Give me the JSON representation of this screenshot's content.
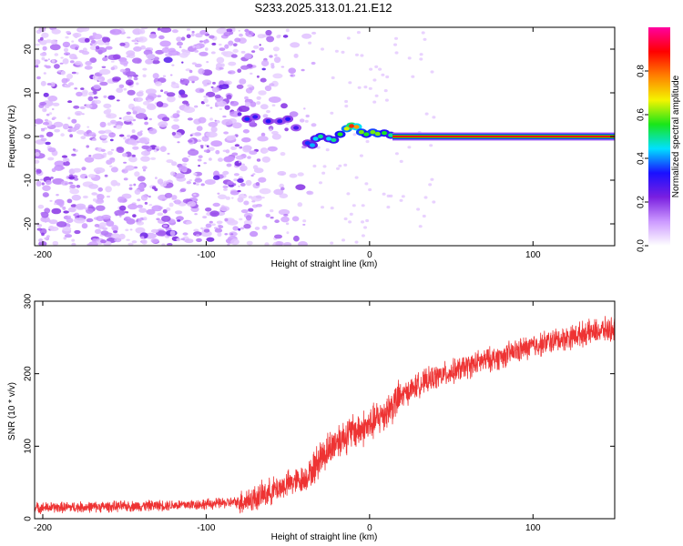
{
  "title": "S233.2025.313.01.21.E12",
  "colors": {
    "series": "#ee3333",
    "axis": "#000000",
    "colormap": [
      "#ffffff",
      "#cc99ff",
      "#7a1fe0",
      "#1a10ff",
      "#00e0ff",
      "#19e619",
      "#f4f400",
      "#ff8000",
      "#ff0000",
      "#ff00a0"
    ]
  },
  "chart_data": [
    {
      "type": "heatmap",
      "title": "S233.2025.313.01.21.E12",
      "xlabel": "Height of straight line (km)",
      "ylabel": "Frequency (Hz)",
      "xlim": [
        -205,
        150
      ],
      "ylim": [
        -25,
        25
      ],
      "xticks": [
        -200,
        -100,
        0,
        100
      ],
      "yticks": [
        -20,
        -10,
        0,
        10,
        20
      ],
      "colorbar": {
        "label": "Normalized spectral amplitude",
        "range": [
          0,
          1
        ],
        "ticks": [
          0.0,
          0.2,
          0.4,
          0.6,
          0.8
        ]
      },
      "ridge": [
        {
          "x": -75,
          "y": 4,
          "amp": 0.35
        },
        {
          "x": -70,
          "y": 4.5,
          "amp": 0.3
        },
        {
          "x": -62,
          "y": 3.5,
          "amp": 0.32
        },
        {
          "x": -55,
          "y": 3.5,
          "amp": 0.3
        },
        {
          "x": -50,
          "y": 4,
          "amp": 0.32
        },
        {
          "x": -45,
          "y": 2,
          "amp": 0.28
        },
        {
          "x": -38,
          "y": -1.5,
          "amp": 0.35
        },
        {
          "x": -35,
          "y": -2,
          "amp": 0.42
        },
        {
          "x": -33,
          "y": -0.5,
          "amp": 0.45
        },
        {
          "x": -30,
          "y": 0,
          "amp": 0.5
        },
        {
          "x": -25,
          "y": -0.5,
          "amp": 0.45
        },
        {
          "x": -22,
          "y": -0.8,
          "amp": 0.5
        },
        {
          "x": -18,
          "y": 0.5,
          "amp": 0.55
        },
        {
          "x": -14,
          "y": 1.8,
          "amp": 0.65
        },
        {
          "x": -11,
          "y": 2.4,
          "amp": 0.85
        },
        {
          "x": -8,
          "y": 2.2,
          "amp": 0.75
        },
        {
          "x": -5,
          "y": 1,
          "amp": 0.6
        },
        {
          "x": -2,
          "y": 0.5,
          "amp": 0.55
        },
        {
          "x": 2,
          "y": 1,
          "amp": 0.6
        },
        {
          "x": 5,
          "y": 0.6,
          "amp": 0.6
        },
        {
          "x": 9,
          "y": 0.8,
          "amp": 0.55
        },
        {
          "x": 13,
          "y": 0.3,
          "amp": 0.5
        }
      ],
      "constant_line": {
        "x_start": 14,
        "x_end": 150,
        "y": 0,
        "amp": 0.9
      }
    },
    {
      "type": "line",
      "xlabel": "Height of straight line (km)",
      "ylabel": "SNR (10 * v/v)",
      "xlim": [
        -205,
        150
      ],
      "ylim": [
        0,
        300
      ],
      "xticks": [
        -200,
        -100,
        0,
        100
      ],
      "yticks": [
        0,
        100,
        200,
        300
      ],
      "series": [
        {
          "name": "SNR",
          "x": [
            -205,
            -150,
            -100,
            -80,
            -70,
            -60,
            -50,
            -40,
            -35,
            -30,
            -25,
            -20,
            -10,
            0,
            10,
            20,
            30,
            40,
            50,
            60,
            70,
            80,
            90,
            100,
            110,
            120,
            130,
            140,
            150
          ],
          "values": [
            15,
            17,
            20,
            23,
            28,
            38,
            48,
            55,
            66,
            85,
            95,
            108,
            120,
            128,
            148,
            170,
            185,
            195,
            202,
            210,
            218,
            223,
            231,
            238,
            244,
            249,
            255,
            259,
            262
          ]
        }
      ]
    }
  ]
}
